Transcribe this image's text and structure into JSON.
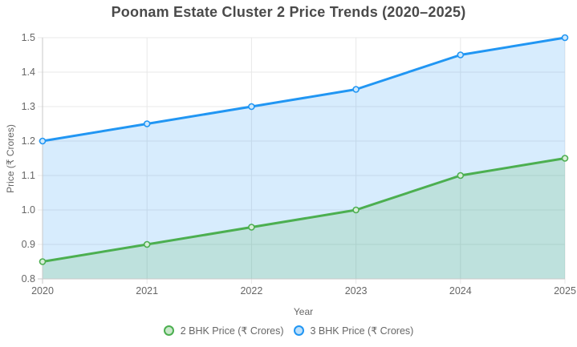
{
  "chart_data": {
    "type": "line",
    "title": "Poonam Estate Cluster 2 Price Trends (2020–2025)",
    "xlabel": "Year",
    "ylabel": "Price (₹ Crores)",
    "categories": [
      "2020",
      "2021",
      "2022",
      "2023",
      "2024",
      "2025"
    ],
    "series": [
      {
        "name": "2 BHK Price (₹ Crores)",
        "values": [
          0.85,
          0.9,
          0.95,
          1.0,
          1.1,
          1.15
        ],
        "color": "#4caf50"
      },
      {
        "name": "3 BHK Price (₹ Crores)",
        "values": [
          1.2,
          1.25,
          1.3,
          1.35,
          1.45,
          1.5
        ],
        "color": "#2196f3"
      }
    ],
    "ylim": [
      0.8,
      1.5
    ],
    "ytick_step": 0.1,
    "ytick_labels": [
      "0.8",
      "0.9",
      "1.0",
      "1.1",
      "1.2",
      "1.3",
      "1.4",
      "1.5"
    ],
    "grid": true,
    "area_fill": true,
    "legend_position": "bottom",
    "style": {
      "title_color": "#4a4a4a",
      "text_color": "#666666",
      "grid_color": "#e8e8e8",
      "axis_border_color": "#c9c9c9",
      "fill_alpha": 0.18,
      "legend_fill_alpha": 0.3,
      "background": "#ffffff"
    }
  }
}
